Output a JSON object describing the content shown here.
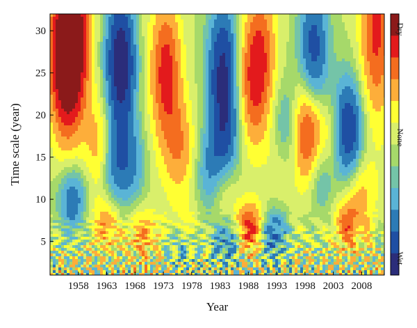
{
  "chart_data": {
    "type": "heatmap",
    "title": "",
    "xlabel": "Year",
    "ylabel": "Time scale (year)",
    "xlim": [
      1953,
      2012
    ],
    "ylim": [
      1,
      32
    ],
    "x_ticks": [
      1958,
      1963,
      1968,
      1973,
      1978,
      1983,
      1988,
      1993,
      1998,
      2003,
      2008
    ],
    "y_ticks": [
      5,
      10,
      15,
      20,
      25,
      30
    ],
    "color_scale": {
      "labels": [
        "Dry",
        "None",
        "Wet"
      ],
      "colors": [
        "#8b1a1a",
        "#e31a1c",
        "#f46d1f",
        "#fdae3a",
        "#ffff33",
        "#d9ef6b",
        "#a6d96a",
        "#74c4a8",
        "#5ab4d6",
        "#2c7bb6",
        "#1f4fa3",
        "#2b2d7a"
      ]
    },
    "series": [
      {
        "name": "",
        "x": [
          1955.5,
          1957.5,
          1973.5,
          2010.5,
          1998.5,
          1988.5,
          1990.5,
          1962,
          1976,
          1994,
          2002.5,
          2005.5,
          1963,
          1969.5,
          1977,
          1983.5,
          2007.5,
          1965.5,
          1983.5,
          1999.5,
          2005.5,
          1964,
          1984,
          1994.5,
          2001,
          1981.5,
          1957,
          1976.5,
          1967.5,
          1984.5,
          1992,
          1988.5
        ],
        "y": [
          27,
          29,
          25,
          30,
          18,
          24,
          27,
          16,
          16,
          15,
          16,
          7,
          7,
          6,
          6,
          12,
          11,
          26,
          25,
          27,
          18,
          14,
          16,
          17,
          13,
          13,
          10,
          5,
          14,
          5,
          6,
          6.5
        ],
        "values": [
          3,
          2.3,
          2,
          1.8,
          2.4,
          1.4,
          1.4,
          1.2,
          1.1,
          1.2,
          1.1,
          1.3,
          1.1,
          1.0,
          1.1,
          1.2,
          0.9,
          -3,
          -2.5,
          -2,
          -2.4,
          -1.3,
          -1.3,
          -1.6,
          -1.3,
          -1.2,
          -1.5,
          -1.2,
          -1.0,
          -1.3,
          -1.6,
          2.2
        ]
      }
    ]
  }
}
